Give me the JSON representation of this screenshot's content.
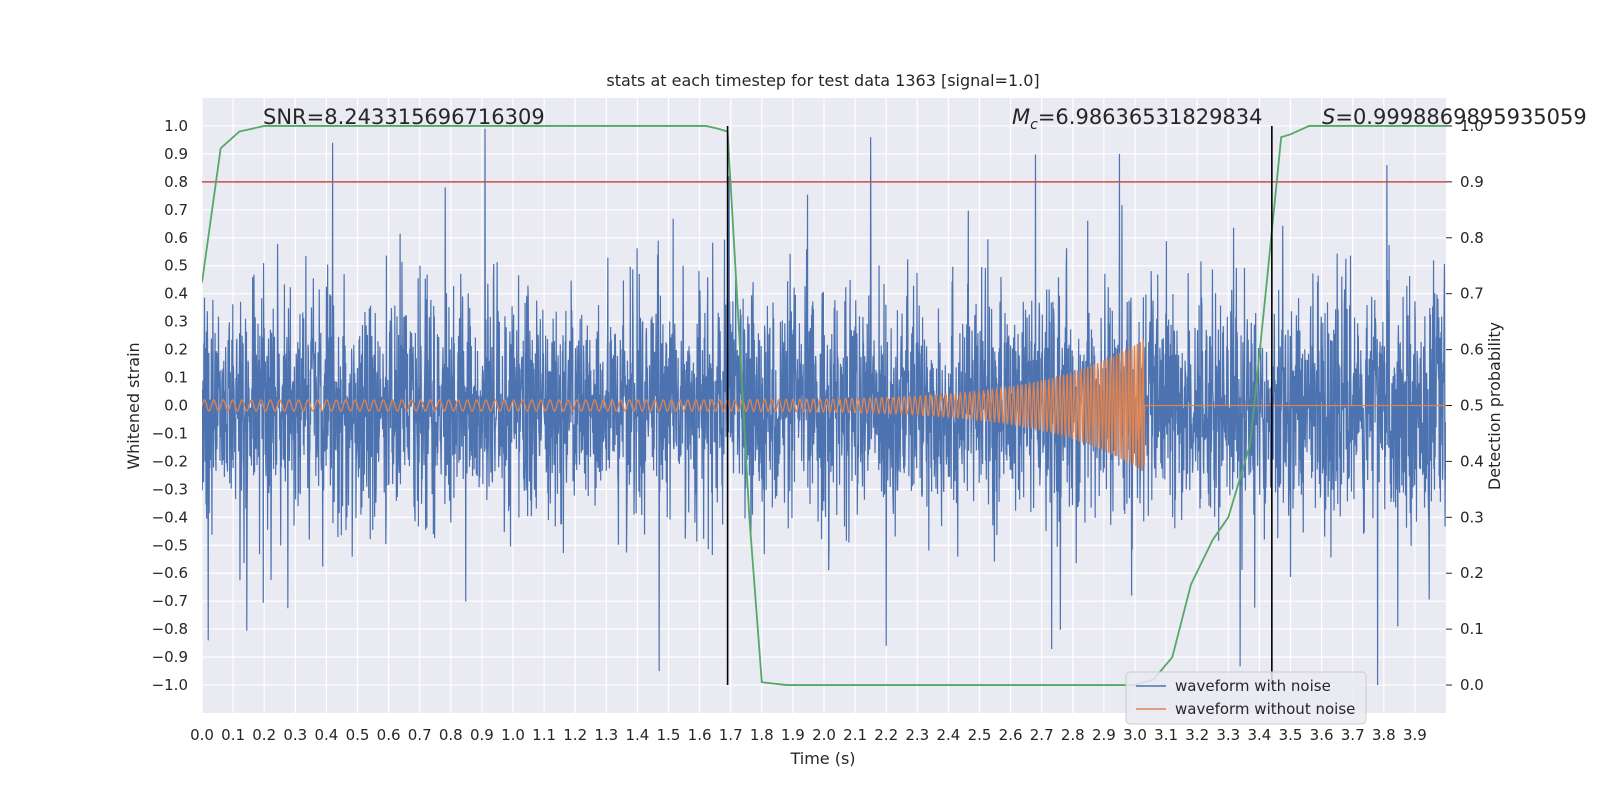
{
  "chart_data": {
    "type": "line",
    "title": "stats at each timestep for test data 1363 [signal=1.0]",
    "xlabel": "Time (s)",
    "ylabel": "Whitened strain",
    "y2label": "Detection probability",
    "xlim": [
      0.0,
      4.0
    ],
    "ylim": [
      -1.1,
      1.1
    ],
    "y2lim": [
      -0.05,
      1.05
    ],
    "xticks": [
      "0.0",
      "0.1",
      "0.2",
      "0.3",
      "0.4",
      "0.5",
      "0.6",
      "0.7",
      "0.8",
      "0.9",
      "1.0",
      "1.1",
      "1.2",
      "1.3",
      "1.4",
      "1.5",
      "1.6",
      "1.7",
      "1.8",
      "1.9",
      "2.0",
      "2.1",
      "2.2",
      "2.3",
      "2.4",
      "2.5",
      "2.6",
      "2.7",
      "2.8",
      "2.9",
      "3.0",
      "3.1",
      "3.2",
      "3.3",
      "3.4",
      "3.5",
      "3.6",
      "3.7",
      "3.8",
      "3.9"
    ],
    "yticks": [
      "−1.0",
      "−0.9",
      "−0.8",
      "−0.7",
      "−0.6",
      "−0.5",
      "−0.4",
      "−0.3",
      "−0.2",
      "−0.1",
      "0.0",
      "0.1",
      "0.2",
      "0.3",
      "0.4",
      "0.5",
      "0.6",
      "0.7",
      "0.8",
      "0.9",
      "1.0"
    ],
    "y2ticks": [
      "0.0",
      "0.1",
      "0.2",
      "0.3",
      "0.4",
      "0.5",
      "0.6",
      "0.7",
      "0.8",
      "0.9",
      "1.0"
    ],
    "grid": true,
    "legend_position": "lower-right",
    "annotations": {
      "snr": "SNR=8.243315696716309",
      "mc_symbol": "M",
      "mc_sub": "c",
      "mc_value": "=6.98636531829834",
      "s_symbol": "S",
      "s_value": "=0.9998869895935059"
    },
    "threshold_y": 0.8,
    "vlines_x": [
      1.69,
      3.44
    ],
    "series": [
      {
        "name": "waveform with noise",
        "color": "#4c72b0",
        "description": "dense noisy whitened strain spanning roughly -1.0 to 1.0 across 0.0-4.0 s; notable peaks near 0.42, 0.91, 2.15, 2.95, 3.81 s"
      },
      {
        "name": "waveform without noise",
        "color": "#dd8452",
        "chirp": {
          "t_merge": 3.03,
          "amp_start": 0.02,
          "amp_peak": 0.24,
          "f_start": 33,
          "f_end": 110
        }
      },
      {
        "name": "",
        "axis": "secondary",
        "color": "#55a868",
        "x": [
          0.0,
          0.06,
          0.12,
          0.2,
          0.3,
          0.5,
          1.0,
          1.5,
          1.62,
          1.66,
          1.69,
          1.72,
          1.76,
          1.8,
          1.88,
          2.0,
          2.5,
          3.0,
          3.06,
          3.12,
          3.18,
          3.25,
          3.3,
          3.37,
          3.42,
          3.47,
          3.5,
          3.56,
          3.62,
          3.7,
          4.0
        ],
        "y": [
          0.72,
          0.96,
          0.99,
          1.0,
          1.0,
          1.0,
          1.0,
          1.0,
          1.0,
          0.995,
          0.99,
          0.7,
          0.3,
          0.005,
          0.0,
          0.0,
          0.0,
          0.0,
          0.01,
          0.05,
          0.18,
          0.26,
          0.3,
          0.43,
          0.7,
          0.98,
          0.985,
          1.0,
          1.0,
          1.0,
          1.0
        ]
      },
      {
        "name": "",
        "color": "#c44e52",
        "role": "threshold line at y=0.8"
      },
      {
        "name": "",
        "color": "#000000",
        "role": "vertical markers"
      }
    ]
  }
}
